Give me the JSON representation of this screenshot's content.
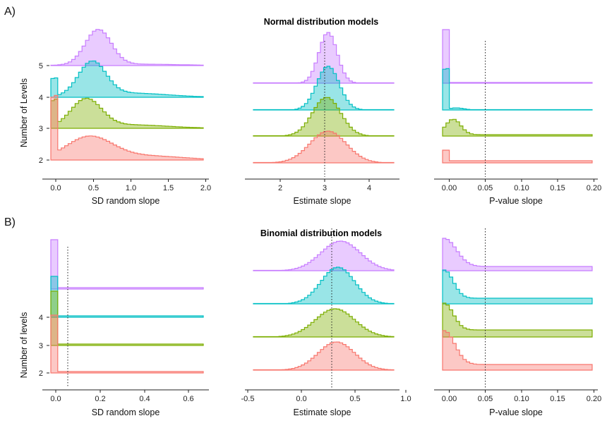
{
  "panel_labels": [
    "A)",
    "B)"
  ],
  "titles": [
    "Normal distribution models",
    "Binomial distribution models"
  ],
  "colors": {
    "5": "#c77cff",
    "4": "#00bfc4",
    "3": "#7cae00",
    "2": "#f8766d"
  },
  "chart_data": [
    {
      "type": "area",
      "panel": "A",
      "xlabel": "SD random slope",
      "ylabel": "Number of Levels",
      "xticks": [
        "0.0",
        "0.5",
        "1.0",
        "1.5",
        "2.0"
      ],
      "yticks": [
        "5",
        "4",
        "3",
        "2"
      ],
      "xlim": [
        -0.1,
        2.05
      ],
      "ridges": [
        "5",
        "4",
        "3",
        "2"
      ],
      "reference_line": null,
      "grid": false
    },
    {
      "type": "area",
      "panel": "A",
      "title": "Normal distribution models",
      "xlabel": "Estimate slope",
      "ylabel": "",
      "xticks": [
        "2",
        "3",
        "4"
      ],
      "xlim": [
        1.2,
        4.65
      ],
      "ridges": [
        "5",
        "4",
        "3",
        "2"
      ],
      "reference_line": 3,
      "grid": false
    },
    {
      "type": "area",
      "panel": "A",
      "xlabel": "P-value slope",
      "ylabel": "",
      "xticks": [
        "0.00",
        "0.05",
        "0.10",
        "0.15",
        "0.20"
      ],
      "xlim": [
        -0.007,
        0.203
      ],
      "ridges": [
        "5",
        "4",
        "3",
        "2"
      ],
      "reference_line": 0.05,
      "grid": false
    },
    {
      "type": "area",
      "panel": "B",
      "xlabel": "SD random slope",
      "ylabel": "Number of levels",
      "xticks": [
        "0.0",
        "0.2",
        "0.4",
        "0.6"
      ],
      "yticks": [
        "4",
        "3",
        "2"
      ],
      "xlim": [
        -0.06,
        0.76
      ],
      "ridges": [
        "5",
        "4",
        "3",
        "2"
      ],
      "reference_line": 0.06,
      "grid": false
    },
    {
      "type": "area",
      "panel": "B",
      "title": "Binomial distribution models",
      "xlabel": "Estimate slope",
      "ylabel": "",
      "xticks": [
        "-0.5",
        "0.0",
        "0.5",
        "1.0"
      ],
      "xlim": [
        -0.6,
        1.0
      ],
      "ridges": [
        "5",
        "4",
        "3",
        "2"
      ],
      "reference_line": 0.3,
      "grid": false
    },
    {
      "type": "area",
      "panel": "B",
      "xlabel": "P-value slope",
      "ylabel": "",
      "xticks": [
        "0.00",
        "0.05",
        "0.10",
        "0.15",
        "0.20"
      ],
      "xlim": [
        -0.007,
        0.203
      ],
      "ridges": [
        "5",
        "4",
        "3",
        "2"
      ],
      "reference_line": 0.05,
      "grid": false
    }
  ]
}
